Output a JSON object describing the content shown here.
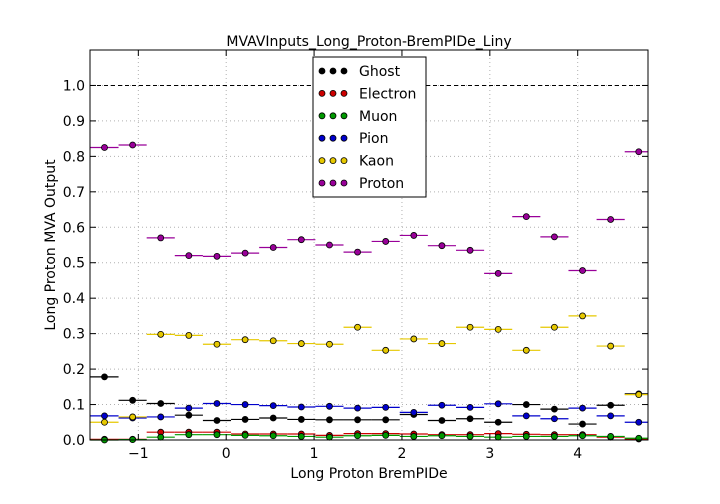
{
  "chart_data": {
    "type": "scatter",
    "title": "MVAVInputs_Long_Proton-BremPIDe_Liny",
    "xlabel": "Long Proton BremPIDe",
    "ylabel": "Long Proton MVA Output",
    "xlim": [
      -1.55,
      4.8
    ],
    "ylim": [
      0.0,
      1.1
    ],
    "x_ticks": [
      -1,
      0,
      1,
      2,
      3,
      4
    ],
    "x_tick_labels": [
      "−1",
      "0",
      "1",
      "2",
      "3",
      "4"
    ],
    "y_ticks": [
      0.0,
      0.1,
      0.2,
      0.3,
      0.4,
      0.5,
      0.6,
      0.7,
      0.8,
      0.9,
      1.0
    ],
    "y_tick_labels": [
      "0.0",
      "0.1",
      "0.2",
      "0.3",
      "0.4",
      "0.5",
      "0.6",
      "0.7",
      "0.8",
      "0.9",
      "1.0"
    ],
    "grid": true,
    "reference_line": 1.0,
    "legend_position": "top-center",
    "bin_half_width": 0.16,
    "x": [
      -1.385,
      -1.065,
      -0.745,
      -0.425,
      -0.105,
      0.215,
      0.535,
      0.855,
      1.175,
      1.495,
      1.815,
      2.135,
      2.455,
      2.775,
      3.095,
      3.415,
      3.735,
      4.055,
      4.375,
      4.695
    ],
    "series": [
      {
        "name": "Ghost",
        "color": "#000000",
        "values": [
          0.178,
          0.112,
          0.103,
          0.07,
          0.055,
          0.058,
          0.062,
          0.058,
          0.057,
          0.057,
          0.057,
          0.072,
          0.055,
          0.06,
          0.05,
          0.1,
          0.087,
          0.045,
          0.098,
          0.13
        ]
      },
      {
        "name": "Electron",
        "color": "#cc0000",
        "values": [
          0.002,
          0.002,
          0.022,
          0.022,
          0.022,
          0.017,
          0.017,
          0.017,
          0.013,
          0.018,
          0.018,
          0.017,
          0.015,
          0.015,
          0.018,
          0.016,
          0.015,
          0.015,
          0.008,
          0.003
        ]
      },
      {
        "name": "Muon",
        "color": "#009900",
        "values": [
          0.0,
          0.001,
          0.008,
          0.015,
          0.015,
          0.013,
          0.012,
          0.01,
          0.008,
          0.012,
          0.013,
          0.01,
          0.012,
          0.01,
          0.008,
          0.01,
          0.01,
          0.012,
          0.01,
          0.005
        ]
      },
      {
        "name": "Pion",
        "color": "#0000cc",
        "values": [
          0.068,
          0.062,
          0.065,
          0.09,
          0.103,
          0.1,
          0.097,
          0.093,
          0.095,
          0.09,
          0.092,
          0.078,
          0.098,
          0.092,
          0.102,
          0.068,
          0.06,
          0.09,
          0.068,
          0.05
        ]
      },
      {
        "name": "Kaon",
        "color": "#e6c800",
        "values": [
          0.05,
          0.065,
          0.298,
          0.295,
          0.27,
          0.283,
          0.28,
          0.272,
          0.27,
          0.318,
          0.253,
          0.285,
          0.272,
          0.318,
          0.312,
          0.253,
          0.318,
          0.35,
          0.265,
          0.128
        ]
      },
      {
        "name": "Proton",
        "color": "#990099",
        "values": [
          0.825,
          0.832,
          0.57,
          0.52,
          0.518,
          0.527,
          0.543,
          0.565,
          0.55,
          0.53,
          0.56,
          0.577,
          0.548,
          0.535,
          0.47,
          0.63,
          0.573,
          0.478,
          0.622,
          0.813
        ]
      }
    ]
  }
}
